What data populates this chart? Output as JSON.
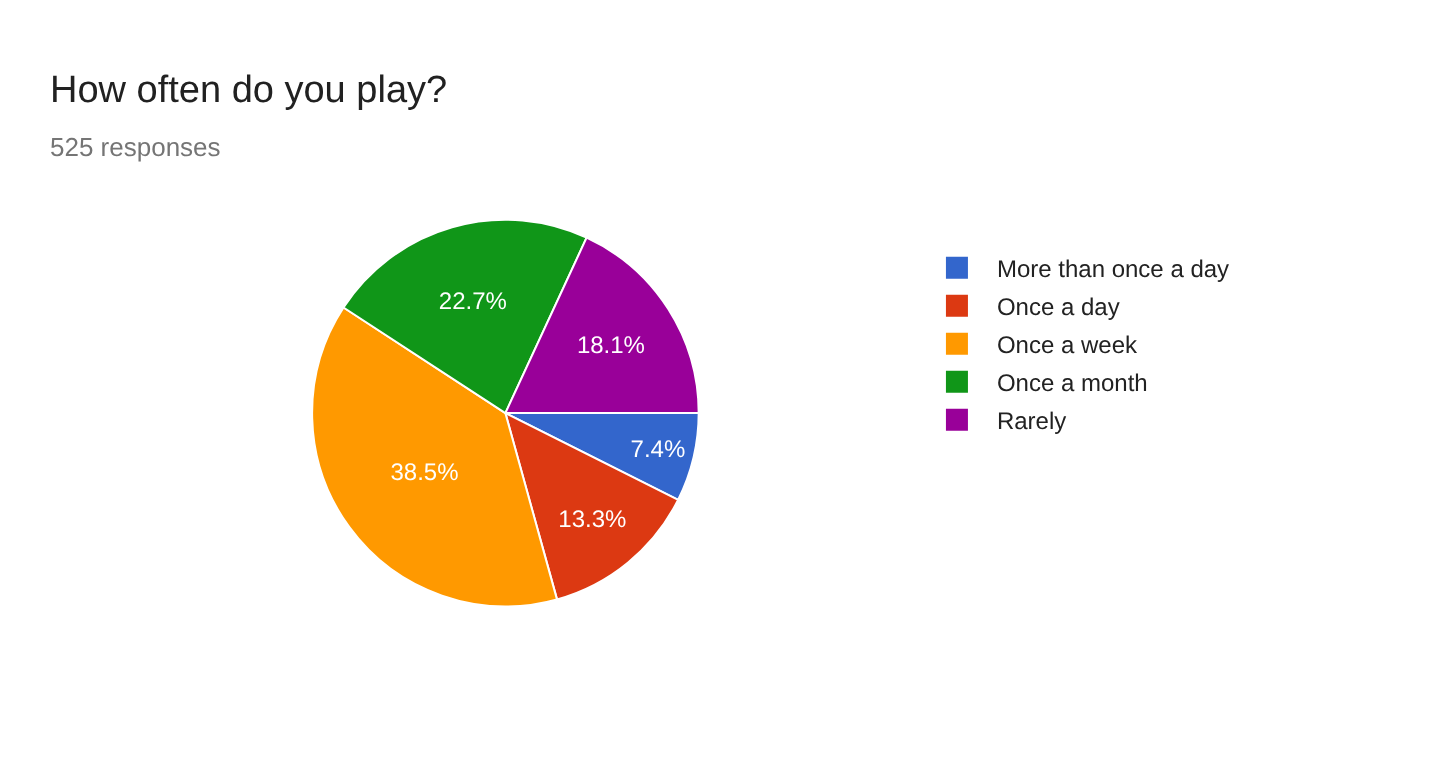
{
  "chart_data": {
    "type": "pie",
    "title": "How often do you play?",
    "subtitle": "525 responses",
    "categories": [
      "More than once a day",
      "Once a day",
      "Once a week",
      "Once a month",
      "Rarely"
    ],
    "values": [
      7.4,
      13.3,
      38.5,
      22.7,
      18.1
    ],
    "colors": [
      "#3366cc",
      "#dc3912",
      "#ff9900",
      "#109618",
      "#990099"
    ],
    "value_labels": [
      "7.4%",
      "13.3%",
      "38.5%",
      "22.7%",
      "18.1%"
    ],
    "legend": "right"
  }
}
